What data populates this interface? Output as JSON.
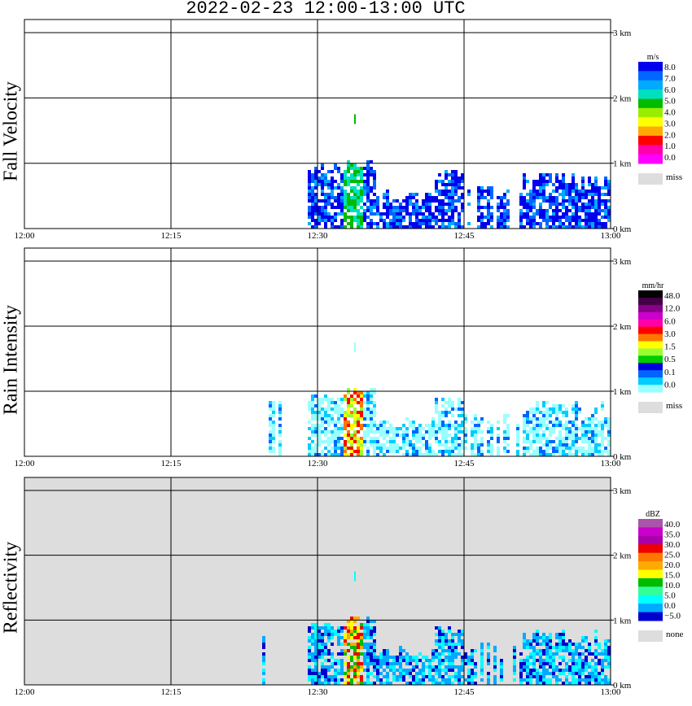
{
  "title": "2022-02-23   12:00-13:00 UTC",
  "chart_data": [
    {
      "type": "heatmap",
      "ylabel": "Fall Velocity",
      "x_ticks": [
        "12:00",
        "12:15",
        "12:30",
        "12:45",
        "13:00"
      ],
      "y_ticks": [
        "0 km",
        "1 km",
        "2 km",
        "3 km"
      ],
      "xlim": [
        "12:00",
        "13:00"
      ],
      "ylim_km": [
        0,
        3.2
      ],
      "background": "#ffffff",
      "colorbar": {
        "unit": "m/s",
        "colors": [
          "#0000ee",
          "#0066ff",
          "#00aaff",
          "#00e0c0",
          "#00bb00",
          "#99ee00",
          "#ffff00",
          "#ffaa00",
          "#ff0000",
          "#ff00aa",
          "#ff00ff"
        ],
        "labels": [
          "8.0",
          "7.0",
          "6.0",
          "5.0",
          "4.0",
          "3.0",
          "2.0",
          "1.0",
          "0.0"
        ],
        "miss_label": "miss",
        "miss_color": "#dddddd"
      }
    },
    {
      "type": "heatmap",
      "ylabel": "Rain Intensity",
      "x_ticks": [
        "12:00",
        "12:15",
        "12:30",
        "12:45",
        "13:00"
      ],
      "y_ticks": [
        "0 km",
        "1 km",
        "2 km",
        "3 km"
      ],
      "xlim": [
        "12:00",
        "13:00"
      ],
      "ylim_km": [
        0,
        3.2
      ],
      "background": "#ffffff",
      "colorbar": {
        "unit": "mm/hr",
        "colors": [
          "#000000",
          "#440044",
          "#880088",
          "#cc00cc",
          "#ff00aa",
          "#ff0000",
          "#ff7700",
          "#ffff00",
          "#99ff33",
          "#00cc00",
          "#0000dd",
          "#0066ff",
          "#00ccff",
          "#99ffff"
        ],
        "labels": [
          "48.0",
          "12.0",
          "6.0",
          "3.0",
          "1.5",
          "0.5",
          "0.1",
          "0.0"
        ],
        "miss_label": "miss",
        "miss_color": "#dddddd"
      }
    },
    {
      "type": "heatmap",
      "ylabel": "Reflectivity",
      "x_ticks": [
        "12:00",
        "12:15",
        "12:30",
        "12:45",
        "13:00"
      ],
      "y_ticks": [
        "0 km",
        "1 km",
        "2 km",
        "3 km"
      ],
      "xlim": [
        "12:00",
        "13:00"
      ],
      "ylim_km": [
        0,
        3.2
      ],
      "background": "#dddddd",
      "colorbar": {
        "unit": "dBZ",
        "colors": [
          "#aa55aa",
          "#cc00cc",
          "#aa00aa",
          "#ee0000",
          "#ff7700",
          "#ffaa00",
          "#ffff00",
          "#00bb00",
          "#33ff99",
          "#00ffff",
          "#00aaff",
          "#0000cc"
        ],
        "labels": [
          "40.0",
          "35.0",
          "30.0",
          "25.0",
          "20.0",
          "15.0",
          "10.0",
          "5.0",
          "0.0",
          "−5.0"
        ],
        "miss_label": "none",
        "miss_color": "#dddddd"
      }
    }
  ]
}
